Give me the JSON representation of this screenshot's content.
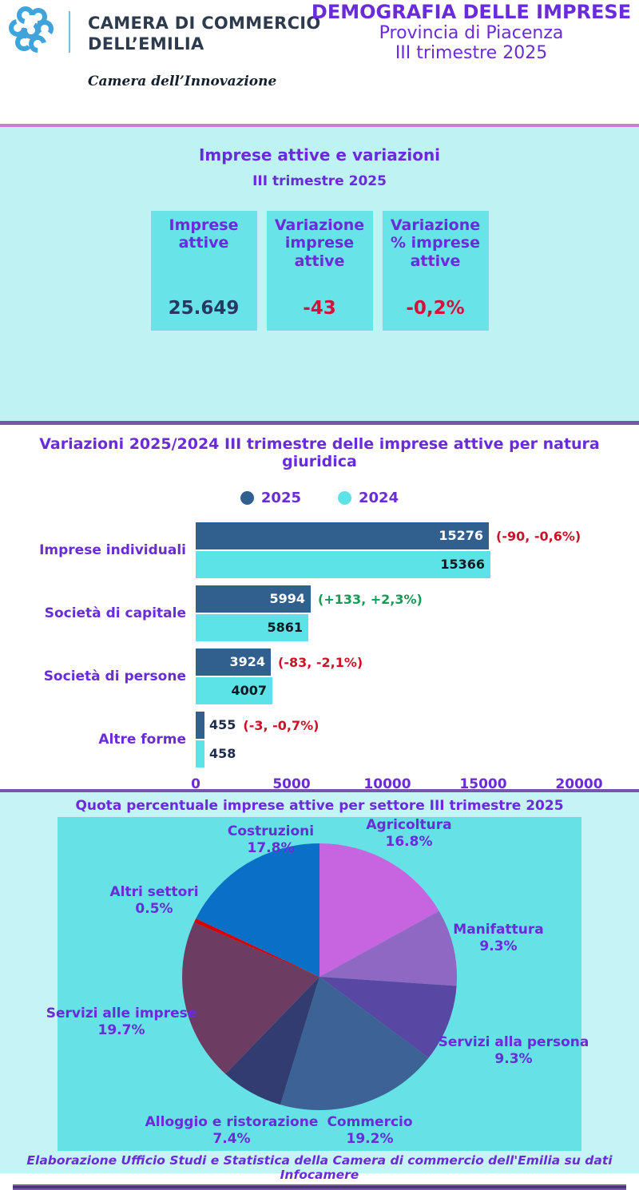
{
  "header": {
    "org_name_line1": "CAMERA DI COMMERCIO",
    "org_name_line2": "DELL’EMILIA",
    "tagline": "Camera dell’Innovazione",
    "title": "DEMOGRAFIA DELLE IMPRESE",
    "subtitle1": "Provincia di Piacenza",
    "subtitle2": "III trimestre 2025",
    "logo_color": "#3FA3DC"
  },
  "summary": {
    "title": "Imprese attive e variazioni",
    "subtitle": "III trimestre 2025",
    "cards": [
      {
        "label": "Imprese attive",
        "value": "25.649",
        "value_color": "#233A63"
      },
      {
        "label": "Variazione imprese attive",
        "value": "-43",
        "value_color": "#D2123A"
      },
      {
        "label": "Variazione % imprese attive",
        "value": "-0,2%",
        "value_color": "#D2123A"
      }
    ]
  },
  "chart_data": [
    {
      "type": "bar",
      "orientation": "horizontal",
      "title": "Variazioni 2025/2024 III trimestre delle imprese attive per natura giuridica",
      "categories": [
        "Imprese individuali",
        "Società di capitale",
        "Società di persone",
        "Altre forme"
      ],
      "series": [
        {
          "name": "2025",
          "color": "#31608F",
          "values": [
            15276,
            5994,
            3924,
            455
          ]
        },
        {
          "name": "2024",
          "color": "#5CE3E8",
          "values": [
            15366,
            5861,
            4007,
            458
          ]
        }
      ],
      "annotations": [
        "(-90, -0,6%)",
        "(+133, +2,3%)",
        "(-83, -2,1%)",
        "(-3, -0,7%)"
      ],
      "annotation_colors": [
        "#CE1126",
        "#169B55",
        "#CE1126",
        "#CE1126"
      ],
      "x_ticks": [
        0,
        5000,
        10000,
        15000,
        20000
      ],
      "xlim": [
        0,
        20000
      ],
      "legend_position": "top",
      "grid": false
    },
    {
      "type": "pie",
      "title": "Quota percentuale imprese attive per settore III trimestre 2025",
      "start_at": "12-oclock-clockwise",
      "slices": [
        {
          "label": "Agricoltura",
          "pct": 16.8,
          "pct_label": "16.8%",
          "color": "#C765E0"
        },
        {
          "label": "Manifattura",
          "pct": 9.3,
          "pct_label": "9.3%",
          "color": "#8F68C4"
        },
        {
          "label": "Servizi alla persona",
          "pct": 9.3,
          "pct_label": "9.3%",
          "color": "#5847A3"
        },
        {
          "label": "Commercio",
          "pct": 19.2,
          "pct_label": "19.2%",
          "color": "#3C6296"
        },
        {
          "label": "Alloggio e ristorazione",
          "pct": 7.4,
          "pct_label": "7.4%",
          "color": "#333C71"
        },
        {
          "label": "Servizi alle imprese",
          "pct": 19.7,
          "pct_label": "19.7%",
          "color": "#6C3C62"
        },
        {
          "label": "Altri settori",
          "pct": 0.5,
          "pct_label": "0.5%",
          "color": "#D60000"
        },
        {
          "label": "Costruzioni",
          "pct": 17.8,
          "pct_label": "17.8%",
          "color": "#0A70C7"
        }
      ]
    }
  ],
  "footer": {
    "credit": "Elaborazione Ufficio Studi e Statistica della Camera di commercio dell'Emilia su dati Infocamere"
  },
  "colors": {
    "accent_purple": "#6A2BD9",
    "section_cyan": "#BFF2F3",
    "card_cyan": "#68E4E8",
    "divider_orchid": "#C77BDE",
    "divider_purple": "#7A54A8",
    "negative_red": "#D2123A",
    "positive_green": "#169B55"
  }
}
